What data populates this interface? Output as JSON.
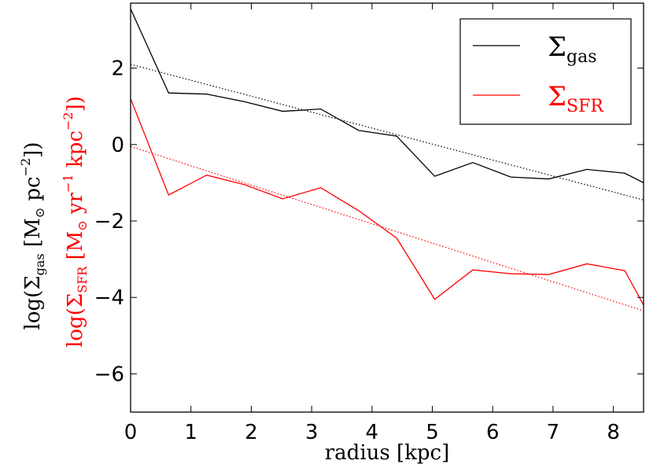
{
  "chart_data": {
    "type": "line",
    "xlabel": "radius [kpc]",
    "ylabel_gas": {
      "prefix": "log(",
      "symbol": "Σ",
      "subscript": "gas",
      "unit_open": " [M",
      "unit_sun": "⊙",
      "unit_rest": " pc",
      "unit_exp": "−2",
      "suffix": "])"
    },
    "ylabel_sfr": {
      "prefix": "log(",
      "symbol": "Σ",
      "subscript": "SFR",
      "unit_open": " [M",
      "unit_sun": "⊙",
      "unit_yr": " yr",
      "unit_yr_exp": "−1",
      "unit_kpc": " kpc",
      "unit_kpc_exp": "−2",
      "suffix": "])"
    },
    "xlim": [
      0,
      8.5
    ],
    "ylim": [
      -7,
      3.7
    ],
    "xticks": [
      0,
      1,
      2,
      3,
      4,
      5,
      6,
      7,
      8
    ],
    "xtick_labels": [
      "0",
      "1",
      "2",
      "3",
      "4",
      "5",
      "6",
      "7",
      "8"
    ],
    "yticks": [
      -6,
      -4,
      -2,
      0,
      2
    ],
    "ytick_labels": [
      "−6",
      "−4",
      "−2",
      "0",
      "2"
    ],
    "grid": false,
    "legend_position": "top-right",
    "series": [
      {
        "name": "gas",
        "legend_symbol": "Σ",
        "legend_subscript": "gas",
        "color": "#000000",
        "style": "solid",
        "x": [
          0,
          0.63,
          1.26,
          1.89,
          2.52,
          3.15,
          3.78,
          4.41,
          5.04,
          5.67,
          6.3,
          6.93,
          7.56,
          8.19,
          8.5
        ],
        "y": [
          3.55,
          1.35,
          1.32,
          1.12,
          0.87,
          0.93,
          0.37,
          0.22,
          -0.83,
          -0.47,
          -0.85,
          -0.9,
          -0.65,
          -0.75,
          -1.0
        ]
      },
      {
        "name": "SFR",
        "legend_symbol": "Σ",
        "legend_subscript": "SFR",
        "color": "#ff0000",
        "style": "solid",
        "x": [
          0,
          0.63,
          1.26,
          1.89,
          2.52,
          3.15,
          3.78,
          4.41,
          5.04,
          5.67,
          6.3,
          6.93,
          7.56,
          8.19,
          8.5
        ],
        "y": [
          1.2,
          -1.32,
          -0.8,
          -1.05,
          -1.42,
          -1.13,
          -1.73,
          -2.45,
          -4.05,
          -3.28,
          -3.38,
          -3.4,
          -3.12,
          -3.3,
          -4.2
        ]
      }
    ],
    "fits": [
      {
        "series": "gas",
        "color": "#000000",
        "style": "dotted",
        "x": [
          0,
          8.5
        ],
        "y": [
          2.1,
          -1.45
        ]
      },
      {
        "series": "SFR",
        "color": "#ff0000",
        "style": "dotted",
        "x": [
          0,
          8.5
        ],
        "y": [
          -0.05,
          -4.35
        ]
      }
    ]
  }
}
